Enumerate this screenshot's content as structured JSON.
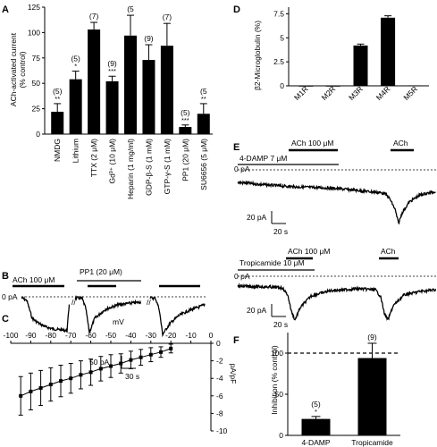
{
  "panels": {
    "A": "A",
    "B": "B",
    "C": "C",
    "D": "D",
    "E": "E",
    "F": "F"
  },
  "panel_a": {
    "ylabel_line1": "ACh-activated current",
    "ylabel_line2": "(% control)",
    "yticks": [
      "0",
      "25",
      "50",
      "75",
      "100",
      "125"
    ]
  },
  "panel_b": {
    "ach_label": "ACh 100 μM",
    "pp1_label": "PP1 (20 μM)",
    "zero_label": "0 pA",
    "scale_y": "50 pA",
    "scale_x": "30 s"
  },
  "panel_c": {
    "xlabel": "mV",
    "ylabel": "pA/pF",
    "xticks": [
      "-100",
      "-90",
      "-80",
      "-70",
      "-60",
      "-50",
      "-40",
      "-30",
      "-20",
      "-10",
      "0"
    ],
    "yticks": [
      "0",
      "-2",
      "-4",
      "-6",
      "-8",
      "-10"
    ]
  },
  "panel_d": {
    "ylabel": "β2-Microglobulin (%)",
    "yticks": [
      "0",
      "2.5",
      "5",
      "7.5"
    ]
  },
  "panel_e": {
    "top": {
      "ach_label": "ACh 100 μM",
      "drug_label": "4-DAMP 7 μM",
      "ach2_label": "ACh",
      "zero_label": "0 pA",
      "scale_y": "20 pA",
      "scale_x": "20 s"
    },
    "bottom": {
      "ach_label": "ACh 100 μM",
      "drug_label": "Tropicamide 10 μM",
      "ach2_label": "ACh",
      "zero_label": "0 pA",
      "scale_y": "20 pA",
      "scale_x": "20 s"
    }
  },
  "panel_f": {
    "ylabel": "Inhibition (% control)",
    "yticks": [
      "0",
      "50",
      "100"
    ]
  },
  "chart_data": [
    {
      "panel": "A",
      "type": "bar",
      "categories": [
        "NMDG",
        "Lithium",
        "TTX (2 μM)",
        "Gd³⁺ (10 μM)",
        "Heparin (1 mg/ml)",
        "GDP-β-S (1 mM)",
        "GTP-γ-S (1 mM)",
        "PP1 (20 μM)",
        "SU6656 (5 μM)"
      ],
      "values": [
        22,
        54,
        103,
        52,
        97,
        73,
        87,
        7,
        20
      ],
      "errors": [
        8,
        8,
        7,
        5,
        20,
        15,
        22,
        2,
        10
      ],
      "n_labels": [
        "(5)",
        "(5)",
        "(7)",
        "(9)",
        "(5",
        "(9)",
        "(7)",
        "(5)",
        "(5"
      ],
      "significance": [
        "**",
        "*",
        "",
        "***",
        "",
        "",
        "",
        "***",
        "**"
      ],
      "ylabel": "ACh-activated current (% control)",
      "ylim": [
        0,
        125
      ]
    },
    {
      "panel": "C",
      "type": "scatter",
      "x": [
        -95,
        -90,
        -85,
        -80,
        -75,
        -70,
        -65,
        -60,
        -55,
        -50,
        -45,
        -40,
        -35,
        -30,
        -25,
        -20
      ],
      "y": [
        -6.0,
        -5.5,
        -5.1,
        -4.7,
        -4.3,
        -4.0,
        -3.6,
        -3.3,
        -2.9,
        -2.6,
        -2.3,
        -1.9,
        -1.6,
        -1.3,
        -1.0,
        -0.6
      ],
      "errors": [
        2.2,
        2.1,
        2.0,
        1.9,
        1.8,
        1.7,
        1.6,
        1.5,
        1.4,
        1.3,
        1.1,
        1.0,
        0.9,
        0.8,
        0.6,
        0.5
      ],
      "xlabel": "mV",
      "ylabel": "pA/pF",
      "xlim": [
        -100,
        0
      ],
      "ylim": [
        -10,
        0
      ]
    },
    {
      "panel": "D",
      "type": "bar",
      "categories": [
        "M1R",
        "M2R",
        "M3R",
        "M4R",
        "M5R"
      ],
      "values": [
        0.0,
        0.0,
        4.2,
        7.1,
        0.05
      ],
      "errors": [
        0,
        0,
        0.15,
        0.2,
        0
      ],
      "ylabel": "β2-Microglobulin (%)",
      "ylim": [
        0,
        8.2
      ]
    },
    {
      "panel": "F",
      "type": "bar",
      "categories": [
        "4-DAMP",
        "Tropicamide"
      ],
      "values": [
        20,
        94
      ],
      "errors": [
        3,
        18
      ],
      "n_labels": [
        "(5)",
        "(9)"
      ],
      "significance": [
        "*",
        ""
      ],
      "reference_line": 100,
      "ylabel": "Inhibition (% control)",
      "ylim": [
        0,
        125
      ]
    }
  ]
}
